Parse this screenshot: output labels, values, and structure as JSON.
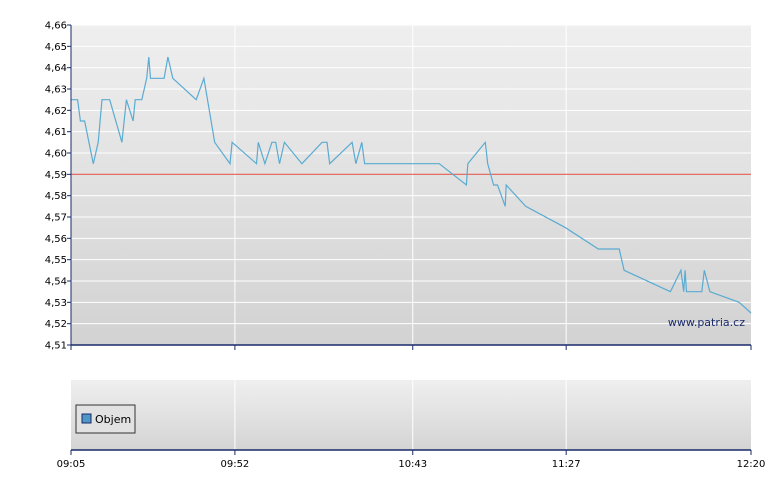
{
  "watermark": "www.patria.cz",
  "legend": {
    "label": "Objem",
    "color": "#4f97c6"
  },
  "colors": {
    "line": "#5aabd1",
    "reference": "#e05a50",
    "axis": "#1a2a6a"
  },
  "chart_data": {
    "type": "line",
    "title": "",
    "xlabel": "",
    "ylabel": "",
    "ylim": [
      4.51,
      4.66
    ],
    "y_ticks": [
      "4,51",
      "4,52",
      "4,53",
      "4,54",
      "4,55",
      "4,56",
      "4,57",
      "4,58",
      "4,59",
      "4,60",
      "4,61",
      "4,62",
      "4,63",
      "4,64",
      "4,65",
      "4,66"
    ],
    "x_ticks": [
      "09:05",
      "09:52",
      "10:43",
      "11:27",
      "12:20"
    ],
    "x_tick_minutes": [
      0,
      47,
      98,
      142,
      195
    ],
    "reference_line": 4.59,
    "grid": true,
    "legend_position": "bottom-left of lower panel",
    "series": [
      {
        "points": [
          [
            0,
            4.625
          ],
          [
            1.9,
            4.625
          ],
          [
            2.7,
            4.615
          ],
          [
            3.9,
            4.615
          ],
          [
            6.4,
            4.595
          ],
          [
            7.8,
            4.605
          ],
          [
            8.9,
            4.625
          ],
          [
            11.1,
            4.625
          ],
          [
            14.6,
            4.605
          ],
          [
            15.9,
            4.625
          ],
          [
            17.8,
            4.615
          ],
          [
            18.4,
            4.625
          ],
          [
            20.3,
            4.625
          ],
          [
            21.7,
            4.635
          ],
          [
            22.3,
            4.645
          ],
          [
            22.8,
            4.635
          ],
          [
            26.7,
            4.635
          ],
          [
            27.8,
            4.645
          ],
          [
            29.2,
            4.635
          ],
          [
            35.9,
            4.625
          ],
          [
            38.1,
            4.635
          ],
          [
            41.2,
            4.605
          ],
          [
            45.6,
            4.595
          ],
          [
            46.2,
            4.605
          ],
          [
            53.2,
            4.595
          ],
          [
            53.7,
            4.605
          ],
          [
            55.6,
            4.595
          ],
          [
            57.6,
            4.605
          ],
          [
            58.7,
            4.605
          ],
          [
            59.8,
            4.595
          ],
          [
            61.2,
            4.605
          ],
          [
            66.2,
            4.595
          ],
          [
            72.0,
            4.605
          ],
          [
            73.4,
            4.605
          ],
          [
            74.2,
            4.595
          ],
          [
            80.6,
            4.605
          ],
          [
            81.7,
            4.595
          ],
          [
            83.4,
            4.605
          ],
          [
            84.2,
            4.595
          ],
          [
            88.4,
            4.595
          ],
          [
            93.1,
            4.595
          ],
          [
            99.8,
            4.595
          ],
          [
            105.6,
            4.595
          ],
          [
            113.4,
            4.585
          ],
          [
            113.8,
            4.595
          ],
          [
            118.8,
            4.605
          ],
          [
            119.5,
            4.595
          ],
          [
            121.2,
            4.585
          ],
          [
            122.3,
            4.585
          ],
          [
            124.5,
            4.575
          ],
          [
            124.8,
            4.585
          ],
          [
            130.4,
            4.575
          ],
          [
            141.8,
            4.565
          ],
          [
            151.2,
            4.555
          ],
          [
            157.2,
            4.555
          ],
          [
            158.6,
            4.545
          ],
          [
            171.9,
            4.535
          ],
          [
            174.9,
            4.545
          ],
          [
            175.7,
            4.535
          ],
          [
            176.1,
            4.545
          ],
          [
            176.5,
            4.535
          ],
          [
            180.9,
            4.535
          ],
          [
            181.6,
            4.545
          ],
          [
            183.2,
            4.535
          ],
          [
            191.6,
            4.53
          ],
          [
            195,
            4.525
          ]
        ]
      }
    ]
  }
}
